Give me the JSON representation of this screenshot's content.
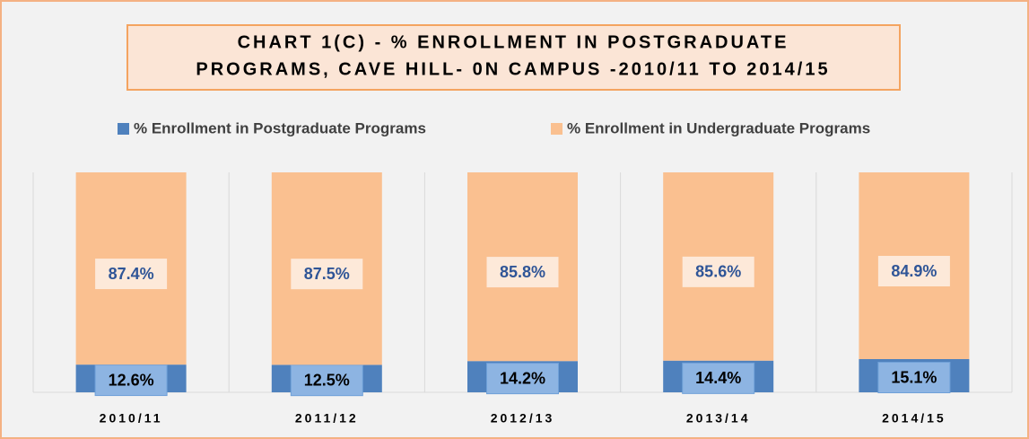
{
  "chart_data": {
    "type": "stacked_bar_100",
    "title": [
      "CHART 1(C) - % ENROLLMENT IN POSTGRADUATE",
      "PROGRAMS, CAVE HILL- 0N CAMPUS -2010/11 TO 2014/15"
    ],
    "categories": [
      "2010/11",
      "2011/12",
      "2012/13",
      "2013/14",
      "2014/15"
    ],
    "series": [
      {
        "name": "% Enrollment in Postgraduate Programs",
        "color": "#4f81bd",
        "values": [
          12.6,
          12.5,
          14.2,
          14.4,
          15.1
        ],
        "value_labels": [
          "12.6%",
          "12.5%",
          "14.2%",
          "14.4%",
          "15.1%"
        ]
      },
      {
        "name": "% Enrollment in Undergraduate Programs",
        "color": "#fac090",
        "values": [
          87.4,
          87.5,
          85.8,
          85.6,
          84.9
        ],
        "value_labels": [
          "87.4%",
          "87.5%",
          "85.8%",
          "85.6%",
          "84.9%"
        ]
      }
    ],
    "ylim": [
      0,
      100
    ],
    "legend": "top"
  }
}
